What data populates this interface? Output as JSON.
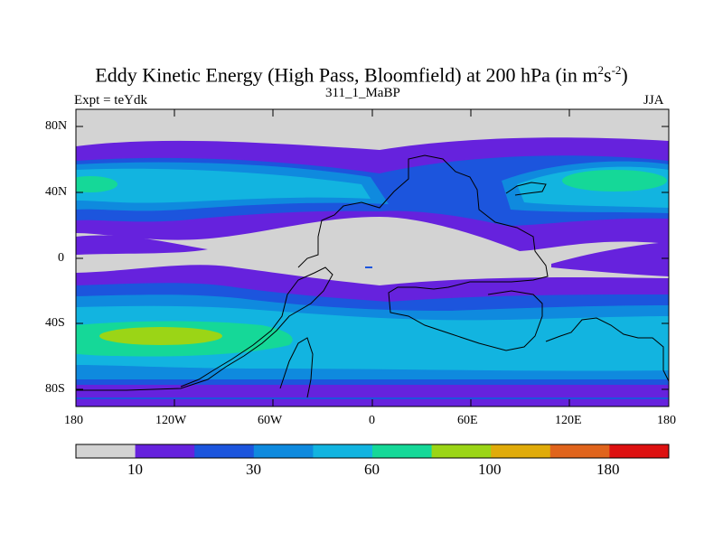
{
  "title_main": "Eddy Kinetic Energy (High Pass, Bloomfield) at 200 hPa (in m",
  "title_sup1": "2",
  "title_mid": "s",
  "title_sup2": "-2",
  "title_close": ")",
  "subtitle": "311_1_MaBP",
  "left_label": "Expt = teYdk",
  "right_label": "JJA",
  "lat_ticks": [
    "80N",
    "40N",
    "0",
    "40S",
    "80S"
  ],
  "lon_ticks": [
    "180",
    "120W",
    "60W",
    "0",
    "60E",
    "120E",
    "180"
  ],
  "colorbar": {
    "colors": [
      "#d3d3d3",
      "#6622dd",
      "#1c55dd",
      "#0f8ade",
      "#12b4e0",
      "#15d898",
      "#9bd516",
      "#e0ab0a",
      "#e0641c",
      "#dd1111"
    ],
    "labels": [
      "10",
      "30",
      "60",
      "100",
      "180"
    ]
  },
  "chart_data": {
    "type": "heatmap",
    "title": "Eddy Kinetic Energy (High Pass, Bloomfield) at 200 hPa (in m^2 s^-2)",
    "subtitle": "311_1_MaBP",
    "experiment": "teYdk",
    "season": "JJA",
    "variable": "eddy kinetic energy",
    "units": "m^2 s^-2",
    "level": "200 hPa",
    "lon_range": [
      -180,
      180
    ],
    "lat_range": [
      -90,
      90
    ],
    "contour_levels": [
      10,
      20,
      30,
      45,
      60,
      80,
      100,
      140,
      180
    ],
    "features": [
      {
        "region": "northern midlatitude storm track, North Pacific near 40N",
        "approx_max": 60
      },
      {
        "region": "southern midlatitude storm track, South Pacific near 45S",
        "approx_max": 100
      },
      {
        "region": "tropics near equator",
        "approx_max": 10
      }
    ]
  }
}
